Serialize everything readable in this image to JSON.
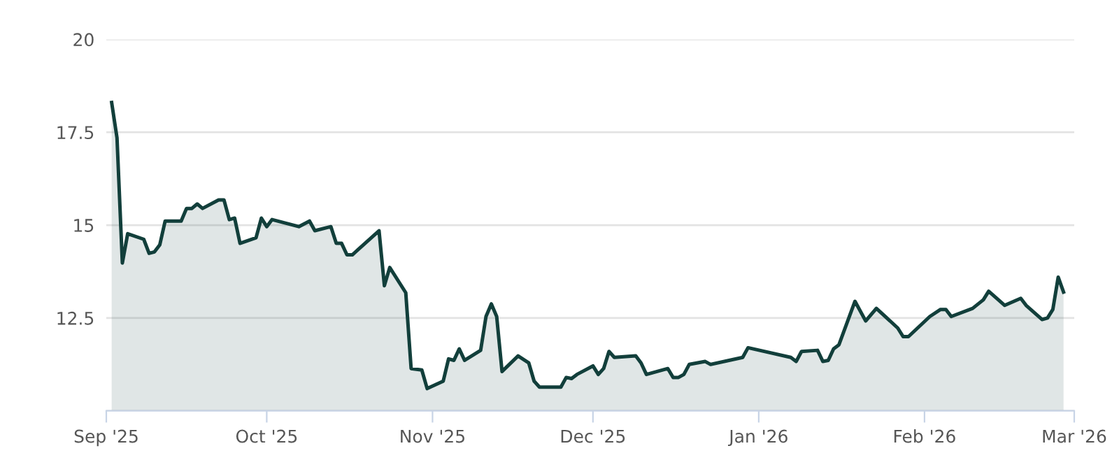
{
  "chart_data": {
    "type": "area",
    "x": [
      "2025-09-02",
      "2025-09-03",
      "2025-09-04",
      "2025-09-05",
      "2025-09-08",
      "2025-09-09",
      "2025-09-10",
      "2025-09-11",
      "2025-09-12",
      "2025-09-15",
      "2025-09-16",
      "2025-09-17",
      "2025-09-18",
      "2025-09-19",
      "2025-09-22",
      "2025-09-23",
      "2025-09-24",
      "2025-09-25",
      "2025-09-26",
      "2025-09-29",
      "2025-09-30",
      "2025-10-01",
      "2025-10-02",
      "2025-10-07",
      "2025-10-09",
      "2025-10-10",
      "2025-10-13",
      "2025-10-14",
      "2025-10-15",
      "2025-10-16",
      "2025-10-17",
      "2025-10-22",
      "2025-10-23",
      "2025-10-24",
      "2025-10-27",
      "2025-10-28",
      "2025-10-30",
      "2025-10-31",
      "2025-11-03",
      "2025-11-04",
      "2025-11-05",
      "2025-11-06",
      "2025-11-07",
      "2025-11-10",
      "2025-11-11",
      "2025-11-12",
      "2025-11-13",
      "2025-11-14",
      "2025-11-17",
      "2025-11-19",
      "2025-11-20",
      "2025-11-21",
      "2025-11-25",
      "2025-11-26",
      "2025-11-27",
      "2025-11-28",
      "2025-12-01",
      "2025-12-02",
      "2025-12-03",
      "2025-12-04",
      "2025-12-05",
      "2025-12-09",
      "2025-12-10",
      "2025-12-11",
      "2025-12-15",
      "2025-12-16",
      "2025-12-17",
      "2025-12-18",
      "2025-12-19",
      "2025-12-22",
      "2025-12-23",
      "2025-12-29",
      "2025-12-30",
      "2026-01-07",
      "2026-01-08",
      "2026-01-09",
      "2026-01-12",
      "2026-01-13",
      "2026-01-14",
      "2026-01-15",
      "2026-01-16",
      "2026-01-19",
      "2026-01-21",
      "2026-01-23",
      "2026-01-27",
      "2026-01-28",
      "2026-01-29",
      "2026-02-02",
      "2026-02-04",
      "2026-02-05",
      "2026-02-06",
      "2026-02-10",
      "2026-02-12",
      "2026-02-13",
      "2026-02-16",
      "2026-02-19",
      "2026-02-20",
      "2026-02-23",
      "2026-02-24",
      "2026-02-25",
      "2026-02-26",
      "2026-02-27"
    ],
    "series": [
      {
        "color": "#123f3b",
        "values": [
          18.3,
          17.35,
          13.98,
          14.77,
          14.62,
          14.24,
          14.28,
          14.47,
          15.11,
          15.11,
          15.45,
          15.45,
          15.57,
          15.45,
          15.68,
          15.68,
          15.15,
          15.19,
          14.51,
          14.66,
          15.19,
          14.96,
          15.15,
          14.96,
          15.11,
          14.85,
          14.96,
          14.51,
          14.51,
          14.2,
          14.2,
          14.85,
          13.37,
          13.86,
          13.18,
          11.14,
          11.1,
          10.6,
          10.8,
          11.4,
          11.36,
          11.67,
          11.36,
          11.63,
          12.54,
          12.88,
          12.54,
          11.06,
          11.48,
          11.29,
          10.8,
          10.64,
          10.64,
          10.9,
          10.87,
          10.98,
          11.21,
          10.98,
          11.14,
          11.6,
          11.44,
          11.48,
          11.29,
          10.98,
          11.14,
          10.9,
          10.9,
          10.98,
          11.25,
          11.33,
          11.25,
          11.44,
          11.7,
          11.44,
          11.33,
          11.6,
          11.63,
          11.33,
          11.36,
          11.67,
          11.78,
          12.95,
          12.42,
          12.76,
          12.23,
          12.0,
          12.0,
          12.54,
          12.73,
          12.73,
          12.54,
          12.76,
          12.99,
          13.22,
          12.84,
          13.03,
          12.84,
          12.46,
          12.5,
          12.73,
          13.6,
          13.2
        ]
      }
    ],
    "xlim": [
      "2025-09-01",
      "2026-03-01"
    ],
    "xticks": [
      {
        "value": "2025-09-01",
        "label": "Sep '25"
      },
      {
        "value": "2025-10-01",
        "label": "Oct '25"
      },
      {
        "value": "2025-11-01",
        "label": "Nov '25"
      },
      {
        "value": "2025-12-01",
        "label": "Dec '25"
      },
      {
        "value": "2026-01-01",
        "label": "Jan '26"
      },
      {
        "value": "2026-02-01",
        "label": "Feb '26"
      },
      {
        "value": "2026-03-01",
        "label": "Mar '26"
      }
    ],
    "ylim": [
      10,
      20
    ],
    "yticks": [
      {
        "value": 10,
        "label": null
      },
      12.5,
      15,
      17.5,
      20
    ],
    "grid": "y",
    "marker": "none",
    "line_style": "solid"
  }
}
